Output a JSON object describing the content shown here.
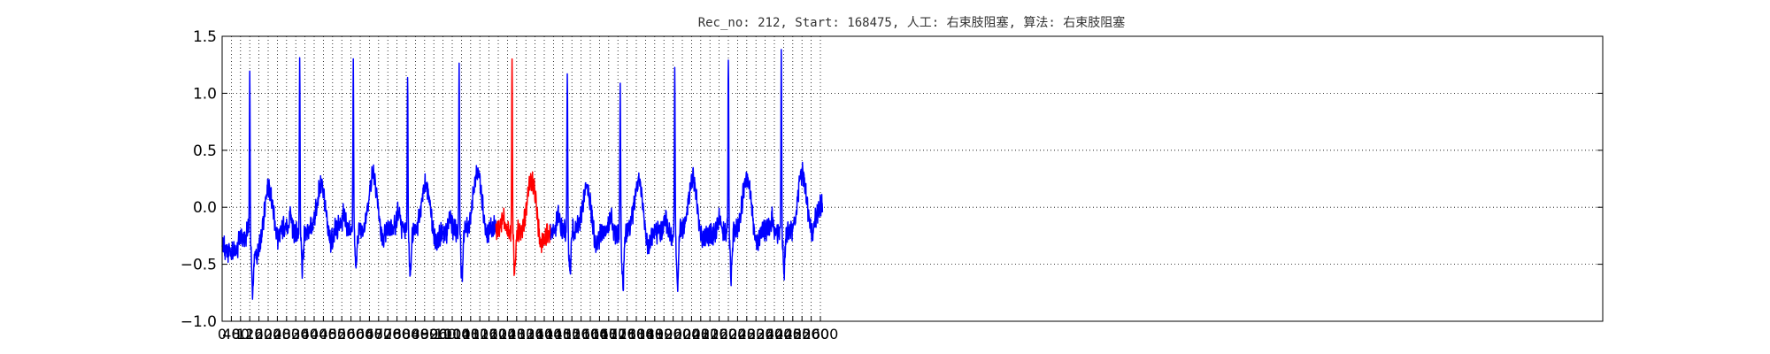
{
  "chart_data": {
    "type": "line",
    "title": "Rec_no: 212, Start: 168475, 人工: 右束肢阻塞, 算法: 右束肢阻塞",
    "xlabel": "",
    "ylabel": "",
    "xlim": [
      0,
      6000
    ],
    "ylim": [
      -1.0,
      1.5
    ],
    "grid": true,
    "grid_style": "dotted",
    "yticks": [
      -1.0,
      -0.5,
      0.0,
      0.5,
      1.0,
      1.5
    ],
    "ytick_labels": [
      "−1.0",
      "−0.5",
      "0.0",
      "0.5",
      "1.0",
      "1.5"
    ],
    "xticks": [
      0,
      40,
      80,
      120,
      160,
      200,
      240,
      280,
      320,
      360,
      400,
      440,
      480,
      520,
      560,
      600,
      640,
      680,
      720,
      760,
      800,
      840,
      880,
      920,
      960,
      1000,
      1040,
      1080,
      1120,
      1160,
      1200,
      1240,
      1280,
      1320,
      1360,
      1400,
      1440,
      1480,
      1520,
      1560,
      1600,
      1640,
      1680,
      1720,
      1760,
      1800,
      1840,
      1880,
      1920,
      1960,
      2000,
      2040,
      2080,
      2120,
      2160,
      2200,
      2240,
      2280,
      2320,
      2360,
      2400,
      2440,
      2480,
      2520,
      2560,
      2600
    ],
    "n_samples": 2610,
    "baseline": [
      [
        0,
        -0.35
      ],
      [
        40,
        -0.4
      ],
      [
        80,
        -0.35
      ],
      [
        115,
        -0.2
      ],
      [
        150,
        -0.45
      ],
      [
        190,
        -0.2
      ],
      [
        220,
        -0.3
      ],
      [
        260,
        -0.15
      ],
      [
        300,
        -0.2
      ],
      [
        340,
        -0.25
      ],
      [
        370,
        -0.2
      ],
      [
        400,
        -0.2
      ],
      [
        440,
        -0.25
      ],
      [
        480,
        -0.2
      ],
      [
        520,
        -0.15
      ],
      [
        560,
        -0.2
      ],
      [
        600,
        -0.2
      ],
      [
        640,
        -0.25
      ],
      [
        680,
        -0.2
      ],
      [
        720,
        -0.2
      ],
      [
        760,
        -0.15
      ],
      [
        800,
        -0.2
      ],
      [
        840,
        -0.22
      ],
      [
        880,
        -0.2
      ],
      [
        920,
        -0.2
      ],
      [
        960,
        -0.25
      ],
      [
        1000,
        -0.2
      ],
      [
        1040,
        -0.2
      ],
      [
        1080,
        -0.2
      ],
      [
        1120,
        -0.2
      ],
      [
        1160,
        -0.15
      ],
      [
        1200,
        -0.2
      ],
      [
        1240,
        -0.2
      ],
      [
        1300,
        -0.22
      ],
      [
        1360,
        -0.2
      ],
      [
        1400,
        -0.25
      ],
      [
        1440,
        -0.2
      ],
      [
        1480,
        -0.2
      ],
      [
        1520,
        -0.2
      ],
      [
        1560,
        -0.22
      ],
      [
        1600,
        -0.25
      ],
      [
        1640,
        -0.22
      ],
      [
        1680,
        -0.2
      ],
      [
        1720,
        -0.25
      ],
      [
        1760,
        -0.2
      ],
      [
        1800,
        -0.22
      ],
      [
        1840,
        -0.25
      ],
      [
        1880,
        -0.22
      ],
      [
        1920,
        -0.2
      ],
      [
        1960,
        -0.25
      ],
      [
        2000,
        -0.2
      ],
      [
        2040,
        -0.22
      ],
      [
        2080,
        -0.2
      ],
      [
        2120,
        -0.25
      ],
      [
        2160,
        -0.22
      ],
      [
        2200,
        -0.2
      ],
      [
        2240,
        -0.22
      ],
      [
        2280,
        -0.2
      ],
      [
        2320,
        -0.22
      ],
      [
        2360,
        -0.2
      ],
      [
        2400,
        -0.22
      ],
      [
        2440,
        -0.2
      ],
      [
        2480,
        -0.22
      ],
      [
        2520,
        -0.2
      ],
      [
        2560,
        -0.15
      ],
      [
        2600,
        0.02
      ],
      [
        2610,
        0.03
      ]
    ],
    "beats": [
      {
        "r_at": 120,
        "r_peak": 1.1,
        "s_min": -0.8,
        "t_at": 205,
        "t_peak": 0.28
      },
      {
        "r_at": 337,
        "r_peak": 1.25,
        "s_min": -0.6,
        "t_at": 430,
        "t_peak": 0.3
      },
      {
        "r_at": 570,
        "r_peak": 1.3,
        "s_min": -0.6,
        "t_at": 655,
        "t_peak": 0.43
      },
      {
        "r_at": 806,
        "r_peak": 1.2,
        "s_min": -0.65,
        "t_at": 885,
        "t_peak": 0.3
      },
      {
        "r_at": 1030,
        "r_peak": 1.22,
        "s_min": -0.7,
        "t_at": 1110,
        "t_peak": 0.45
      },
      {
        "r_at": 1260,
        "r_peak": 1.28,
        "s_min": -0.65,
        "t_at": 1345,
        "t_peak": 0.35
      },
      {
        "r_at": 1500,
        "r_peak": 1.18,
        "s_min": -0.65,
        "t_at": 1585,
        "t_peak": 0.27
      },
      {
        "r_at": 1730,
        "r_peak": 1.1,
        "s_min": -0.8,
        "t_at": 1810,
        "t_peak": 0.33
      },
      {
        "r_at": 1967,
        "r_peak": 1.25,
        "s_min": -0.78,
        "t_at": 2045,
        "t_peak": 0.37
      },
      {
        "r_at": 2200,
        "r_peak": 1.32,
        "s_min": -0.72,
        "t_at": 2280,
        "t_peak": 0.4
      },
      {
        "r_at": 2430,
        "r_peak": 1.33,
        "s_min": -0.65,
        "t_at": 2520,
        "t_peak": 0.42
      }
    ],
    "series": [
      {
        "color": "#0000ff",
        "ranges": [
          [
            0,
            1190
          ],
          [
            1425,
            2610
          ]
        ]
      },
      {
        "color": "#ff0000",
        "ranges": [
          [
            1190,
            1425
          ]
        ]
      }
    ]
  }
}
